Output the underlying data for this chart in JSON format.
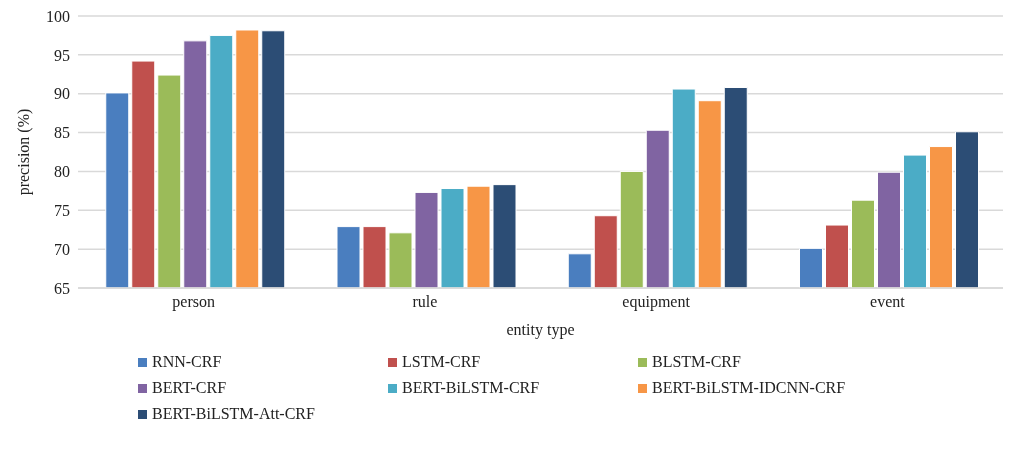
{
  "chart_data": {
    "type": "bar",
    "xlabel": "entity type",
    "ylabel": "precision (%)",
    "categories": [
      "person",
      "rule",
      "equipment",
      "event"
    ],
    "series": [
      {
        "name": "RNN-CRF",
        "color": "#4a7ebf",
        "values": [
          90.1,
          72.9,
          69.4,
          70.1
        ]
      },
      {
        "name": "LSTM-CRF",
        "color": "#c0504d",
        "values": [
          94.2,
          72.9,
          74.3,
          73.1
        ]
      },
      {
        "name": "BLSTM-CRF",
        "color": "#9bbb59",
        "values": [
          92.4,
          72.1,
          80.0,
          76.3
        ]
      },
      {
        "name": "BERT-CRF",
        "color": "#8064a2",
        "values": [
          96.8,
          77.3,
          85.3,
          79.9
        ]
      },
      {
        "name": "BERT-BiLSTM-CRF",
        "color": "#4bacc6",
        "values": [
          97.5,
          77.8,
          90.6,
          82.1
        ]
      },
      {
        "name": "BERT-BiLSTM-IDCNN-CRF",
        "color": "#f79646",
        "values": [
          98.2,
          78.1,
          89.1,
          83.2
        ]
      },
      {
        "name": "BERT-BiLSTM-Att-CRF",
        "color": "#2c4d75",
        "values": [
          98.1,
          78.3,
          90.8,
          85.1
        ]
      }
    ],
    "ylim": [
      65,
      100
    ],
    "yticks": [
      65,
      70,
      75,
      80,
      85,
      90,
      95,
      100
    ],
    "grid": "y",
    "legend": "bottom"
  }
}
